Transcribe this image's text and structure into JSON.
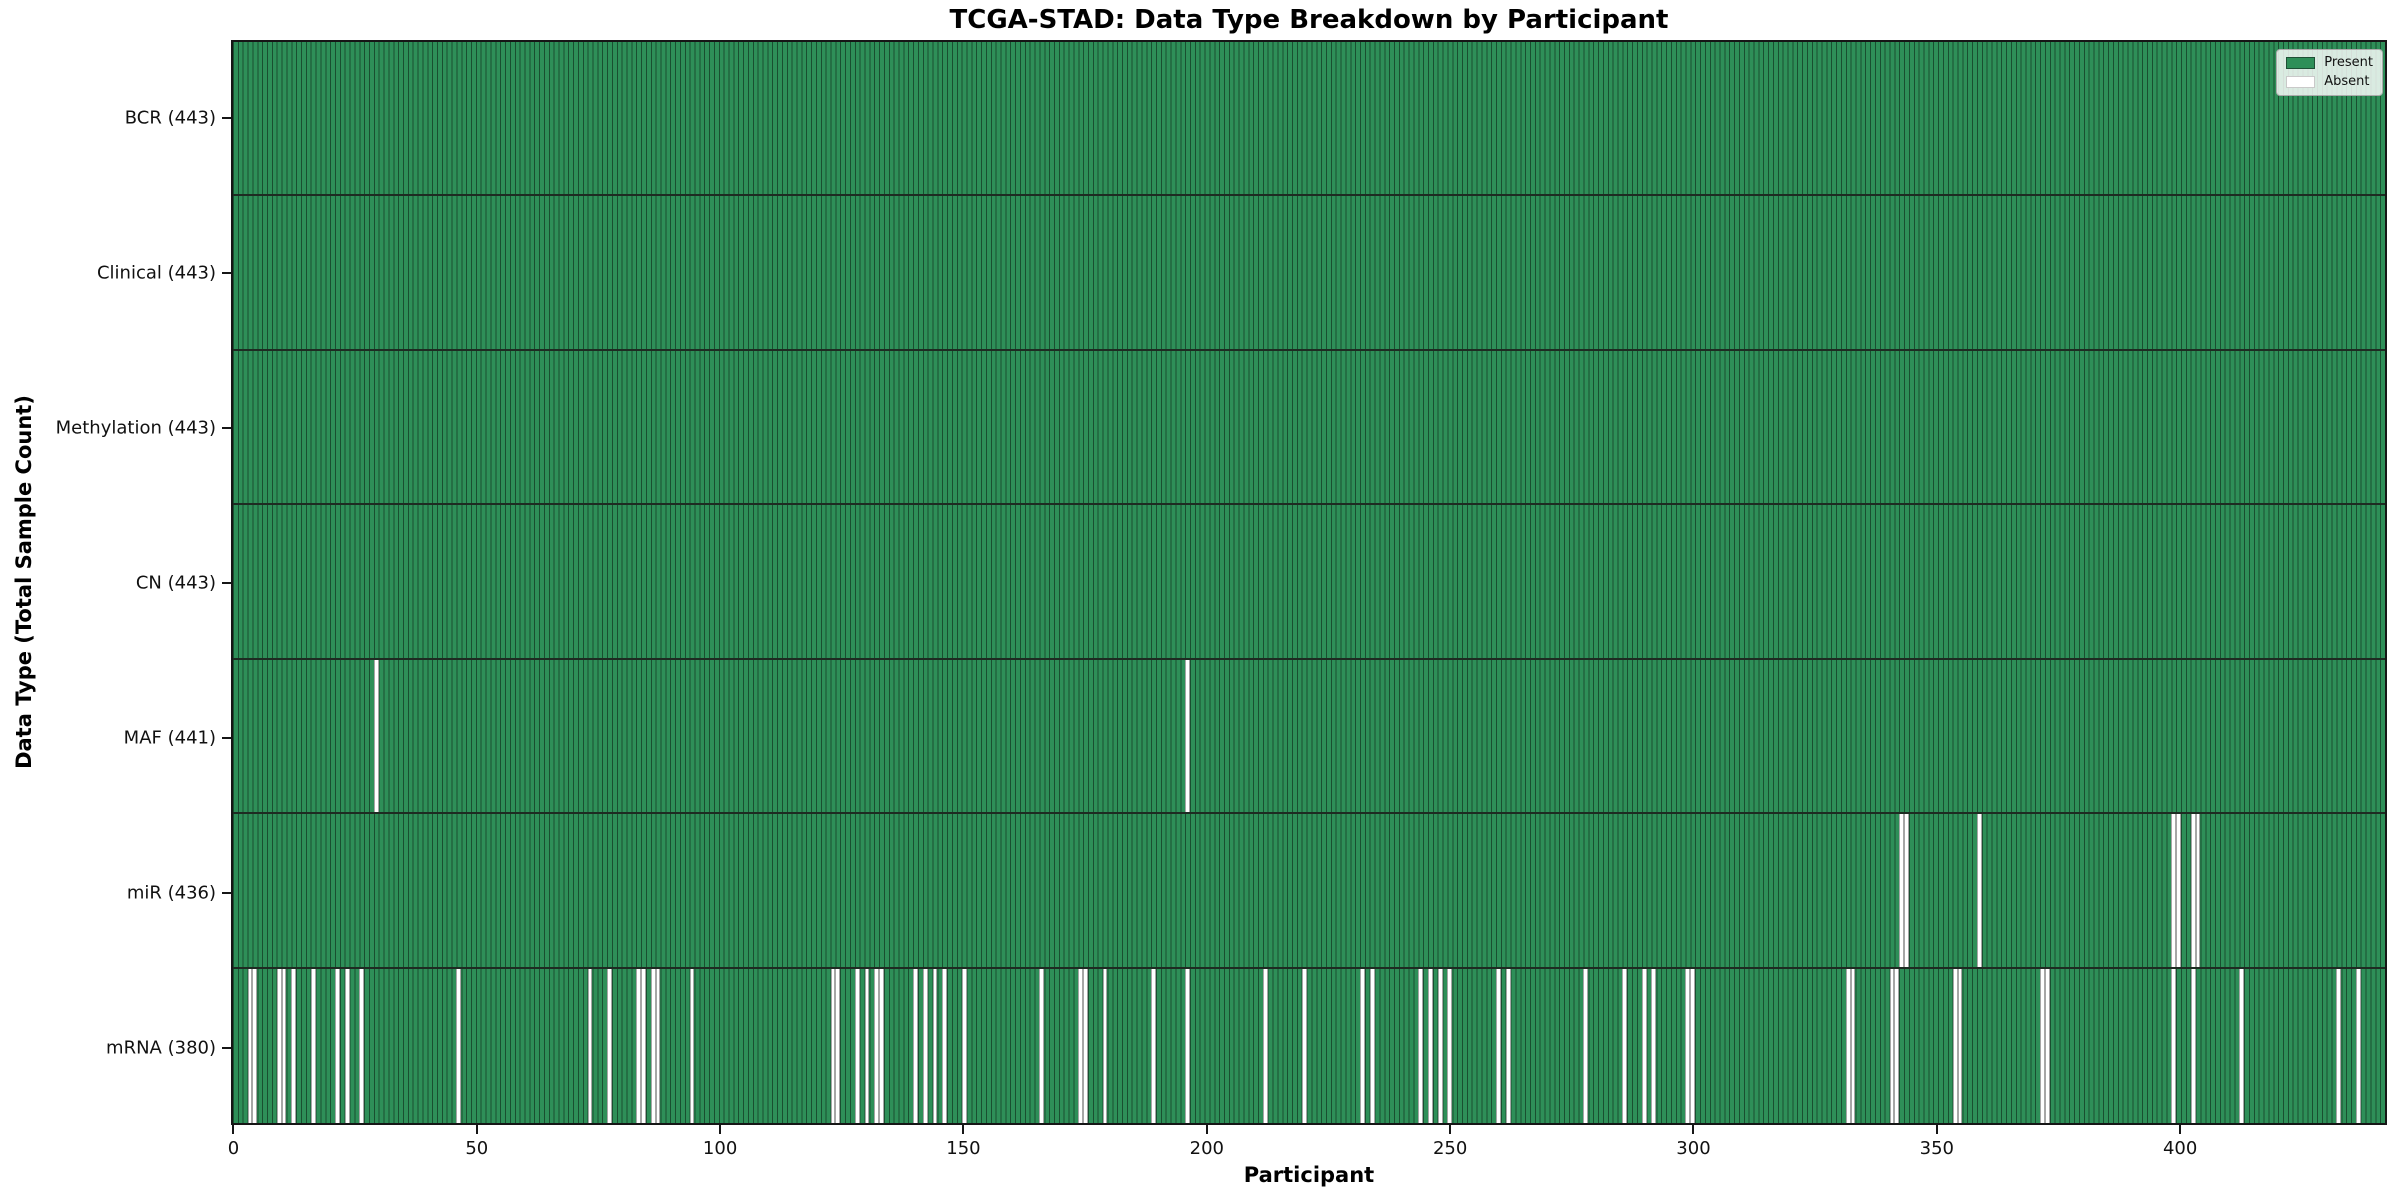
{
  "title": "TCGA-STAD: Data Type Breakdown by Participant",
  "chart_data": {
    "type": "heatmap",
    "title": "TCGA-STAD: Data Type Breakdown by Participant",
    "xlabel": "Participant",
    "ylabel": "Data Type (Total Sample Count)",
    "n_participants": 443,
    "x_ticks": [
      0,
      50,
      100,
      150,
      200,
      250,
      300,
      350,
      400
    ],
    "grid": false,
    "legend_position": "upper right",
    "legend_labels": {
      "present": "Present",
      "absent": "Absent"
    },
    "colors": {
      "present": "#2e8f58",
      "absent": "#ffffff",
      "bar_edge": "#1c3527",
      "row_divider": "#1e2b22",
      "axis": "#161616"
    },
    "rows": [
      {
        "name": "BCR",
        "label": "BCR (443)",
        "present_count": 443,
        "absent_count": 0,
        "absent_participants": []
      },
      {
        "name": "Clinical",
        "label": "Clinical (443)",
        "present_count": 443,
        "absent_count": 0,
        "absent_participants": []
      },
      {
        "name": "Methylation",
        "label": "Methylation (443)",
        "present_count": 443,
        "absent_count": 0,
        "absent_participants": []
      },
      {
        "name": "CN",
        "label": "CN (443)",
        "present_count": 443,
        "absent_count": 0,
        "absent_participants": []
      },
      {
        "name": "MAF",
        "label": "MAF (441)",
        "present_count": 441,
        "absent_count": 2,
        "absent_participants": [
          29,
          196
        ]
      },
      {
        "name": "miR",
        "label": "miR (436)",
        "present_count": 436,
        "absent_count": 7,
        "absent_participants": [
          343,
          344,
          359,
          399,
          400,
          403,
          404
        ]
      },
      {
        "name": "mRNA",
        "label": "mRNA (380)",
        "present_count": 380,
        "absent_count": 63,
        "absent_participants": [
          3,
          4,
          9,
          10,
          12,
          16,
          21,
          23,
          26,
          46,
          73,
          77,
          83,
          84,
          86,
          87,
          94,
          123,
          124,
          128,
          130,
          132,
          133,
          140,
          142,
          144,
          146,
          150,
          166,
          174,
          175,
          179,
          189,
          196,
          212,
          220,
          232,
          234,
          244,
          246,
          248,
          250,
          260,
          262,
          278,
          286,
          290,
          292,
          299,
          300,
          332,
          333,
          341,
          342,
          354,
          355,
          372,
          373,
          399,
          403,
          413,
          433,
          437
        ]
      }
    ]
  }
}
